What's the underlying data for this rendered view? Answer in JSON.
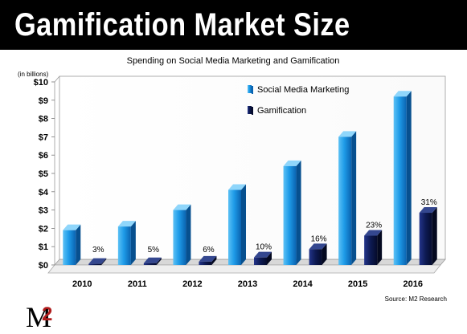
{
  "banner": {
    "title": "Gamification Market Size"
  },
  "logo": {
    "m": "M",
    "two": "2"
  },
  "source": "Source: M2 Research",
  "colors": {
    "social_media": "#1e9be8",
    "gamification": "#0d1a52",
    "banner_bg": "#000000",
    "logo_accent": "#b01c1c"
  },
  "chart_data": {
    "type": "bar",
    "title": "Spending on Social Media Marketing and Gamification",
    "unit_label": "(in billions)",
    "categories": [
      "2010",
      "2011",
      "2012",
      "2013",
      "2014",
      "2015",
      "2016"
    ],
    "series": [
      {
        "name": "Social Media Marketing",
        "values": [
          1.9,
          2.1,
          3.0,
          4.1,
          5.4,
          7.0,
          9.2
        ]
      },
      {
        "name": "Gamification",
        "values": [
          0.06,
          0.1,
          0.18,
          0.41,
          0.86,
          1.6,
          2.85
        ]
      }
    ],
    "data_labels": [
      "3%",
      "5%",
      "6%",
      "10%",
      "16%",
      "23%",
      "31%"
    ],
    "y_ticks": [
      "$0",
      "$1",
      "$2",
      "$3",
      "$4",
      "$5",
      "$6",
      "$7",
      "$8",
      "$9",
      "$10"
    ],
    "ylim": [
      0,
      10
    ],
    "grid": false,
    "style": "3d-columns",
    "legend_position": "top-center"
  }
}
